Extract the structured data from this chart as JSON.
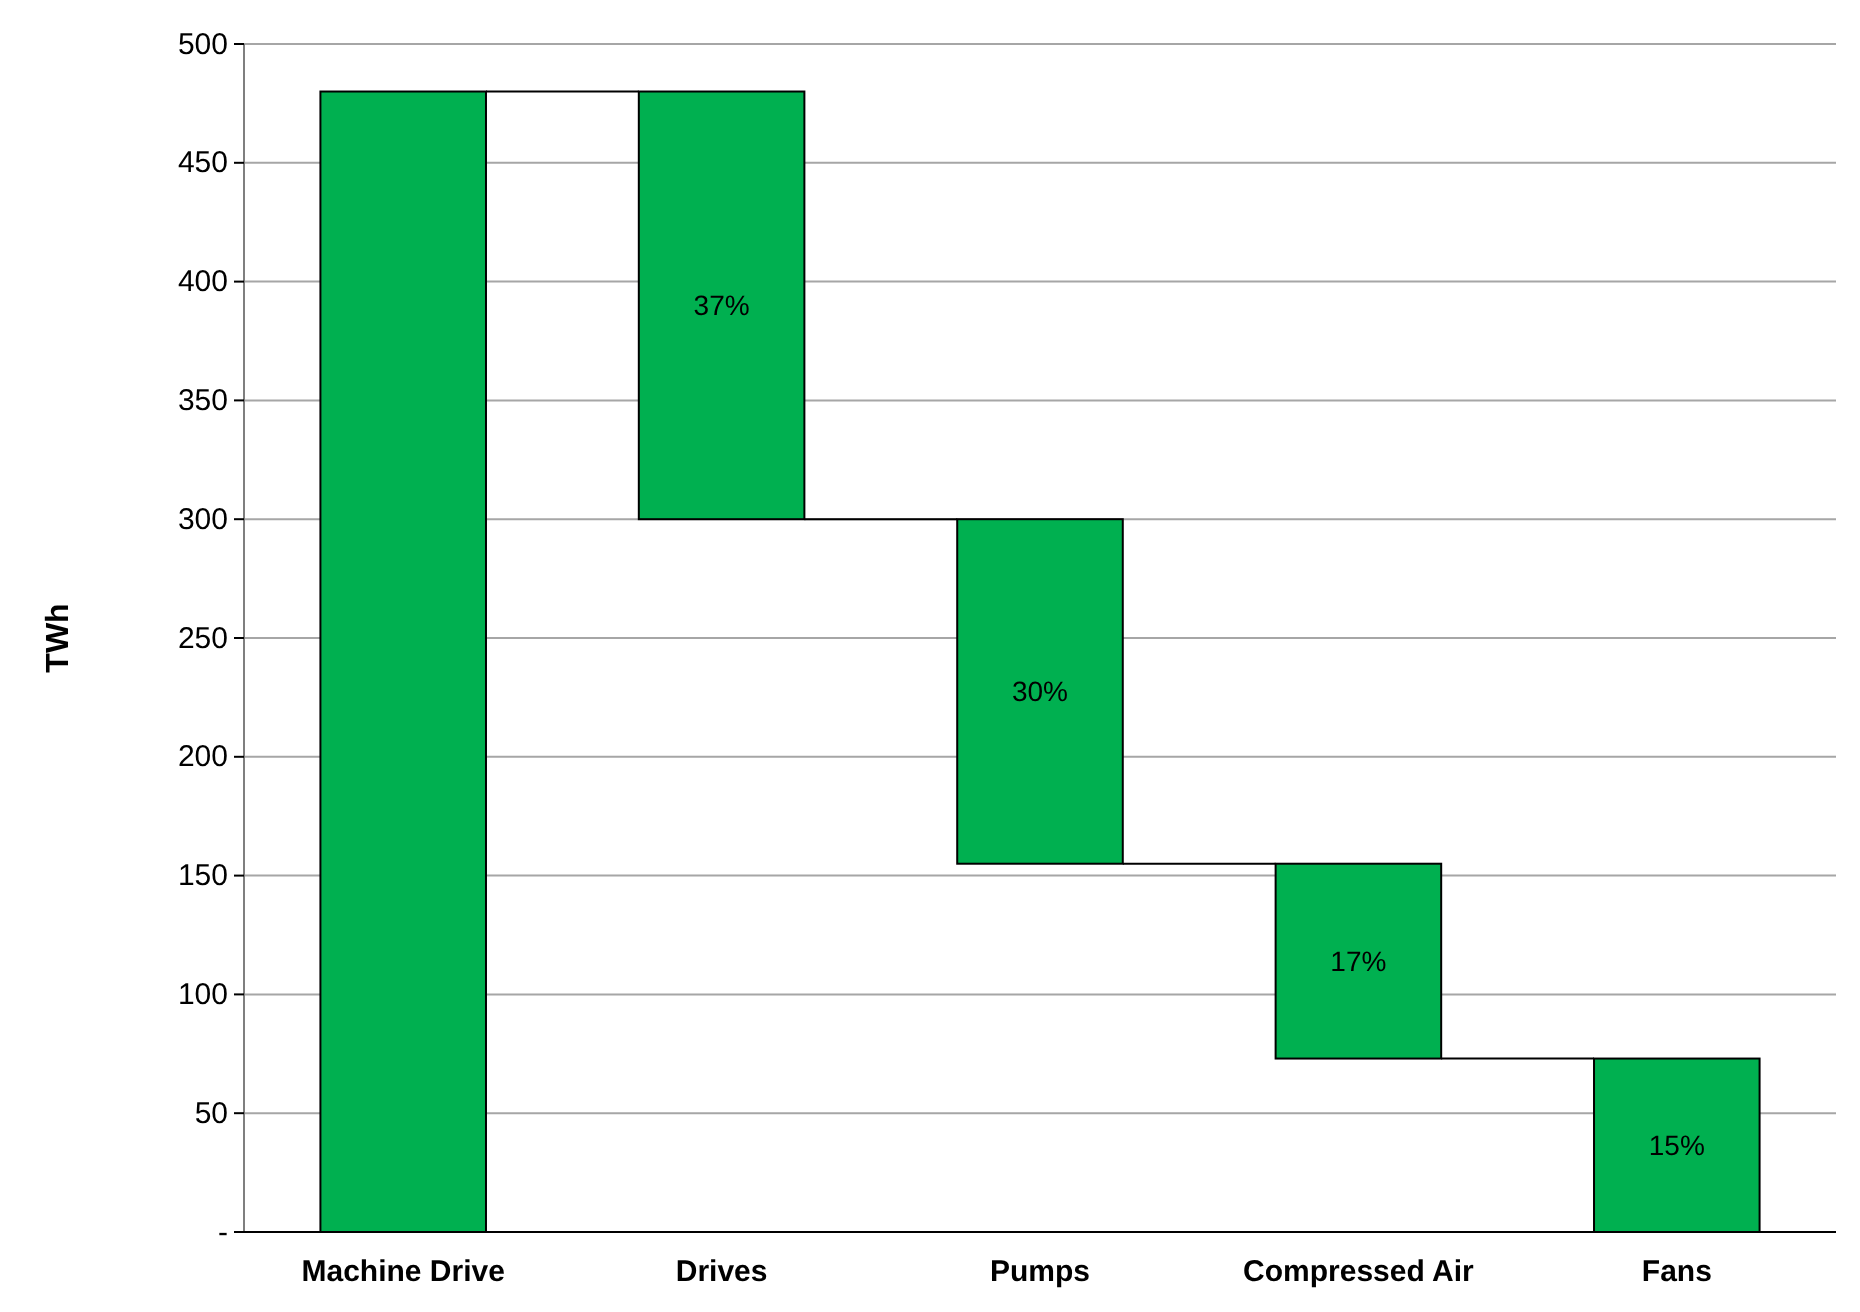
{
  "chart_data": {
    "type": "bar",
    "ylabel": "TWh",
    "categories": [
      "Machine Drive",
      "Drives",
      "Pumps",
      "Compressed Air",
      "Fans"
    ],
    "values": [
      480,
      180,
      145,
      82,
      73
    ],
    "base": [
      0,
      300,
      155,
      73,
      0
    ],
    "color": "#00b050",
    "annotations": [
      "37%",
      "30%",
      "17%",
      "15%"
    ],
    "ylim": [
      0,
      500
    ],
    "yticks": [
      {
        "value": 0,
        "label": "-"
      },
      50,
      100,
      150,
      200,
      250,
      300,
      350,
      400,
      450,
      500
    ],
    "grid": "y"
  }
}
